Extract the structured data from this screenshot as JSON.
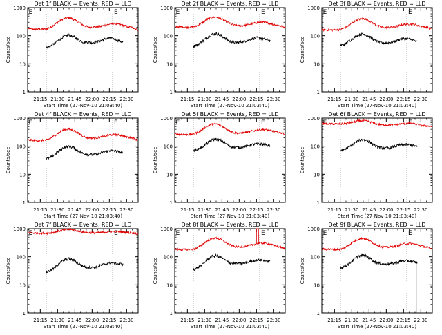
{
  "colors": {
    "events": "#000000",
    "lld": "#e00000",
    "axis": "#000000",
    "background": "#ffffff"
  },
  "shared": {
    "xlabel": "Start Time (27-Nov-10 21:03:40)",
    "ylabel": "Counts/sec",
    "x_tick_labels": [
      "21:15",
      "21:30",
      "21:45",
      "22:00",
      "22:15",
      "22:30"
    ],
    "x_tick_minutes": [
      15,
      30,
      45,
      60,
      75,
      90
    ],
    "x_range_minutes": [
      4,
      100
    ],
    "y_tick_labels": [
      "1",
      "10",
      "100",
      "1000"
    ],
    "y_tick_values": [
      1,
      10,
      100,
      1000
    ],
    "ylim": [
      1,
      1000
    ],
    "yscale": "log",
    "marker_lines_minutes": [
      20,
      78
    ],
    "marker_labels": [
      "E",
      "E"
    ],
    "marker_label_positions_minutes": [
      5,
      79
    ]
  },
  "chart_data": [
    {
      "type": "line",
      "title": "Det 1f BLACK = Events, RED = LLD",
      "series": [
        {
          "name": "Events",
          "color": "black",
          "start_min": 20,
          "end_min": 87,
          "x": [
            20,
            24,
            28,
            32,
            36,
            40,
            44,
            48,
            52,
            56,
            60,
            64,
            68,
            72,
            76,
            80,
            84,
            87
          ],
          "values": [
            38,
            42,
            55,
            75,
            95,
            105,
            92,
            72,
            60,
            58,
            57,
            60,
            68,
            78,
            82,
            75,
            65,
            58
          ]
        },
        {
          "name": "LLD",
          "color": "red",
          "start_min": 4,
          "end_min": 100,
          "x": [
            4,
            10,
            16,
            20,
            24,
            28,
            32,
            36,
            40,
            44,
            48,
            52,
            56,
            60,
            64,
            68,
            72,
            76,
            80,
            84,
            88,
            92,
            96,
            100
          ],
          "values": [
            175,
            170,
            170,
            175,
            200,
            260,
            340,
            410,
            440,
            380,
            300,
            240,
            205,
            200,
            205,
            215,
            240,
            260,
            265,
            250,
            225,
            205,
            190,
            160
          ]
        }
      ]
    },
    {
      "type": "line",
      "title": "Det 2f BLACK = Events, RED = LLD",
      "series": [
        {
          "name": "Events",
          "color": "black",
          "start_min": 20,
          "end_min": 87,
          "x": [
            20,
            24,
            28,
            32,
            36,
            40,
            44,
            48,
            52,
            56,
            60,
            64,
            68,
            72,
            76,
            80,
            84,
            87
          ],
          "values": [
            42,
            48,
            62,
            85,
            110,
            118,
            102,
            78,
            62,
            58,
            58,
            62,
            70,
            80,
            85,
            80,
            72,
            66
          ]
        },
        {
          "name": "LLD",
          "color": "red",
          "start_min": 4,
          "end_min": 100,
          "x": [
            4,
            10,
            16,
            20,
            24,
            28,
            32,
            36,
            40,
            44,
            48,
            52,
            56,
            60,
            64,
            68,
            72,
            76,
            80,
            84,
            88,
            92,
            96,
            100
          ],
          "values": [
            210,
            205,
            200,
            205,
            230,
            290,
            380,
            450,
            470,
            410,
            330,
            270,
            235,
            225,
            230,
            245,
            270,
            295,
            305,
            290,
            265,
            240,
            220,
            195
          ]
        }
      ]
    },
    {
      "type": "line",
      "title": "Det 3f BLACK = Events, RED = LLD",
      "series": [
        {
          "name": "Events",
          "color": "black",
          "start_min": 20,
          "end_min": 87,
          "x": [
            20,
            24,
            28,
            32,
            36,
            40,
            44,
            48,
            52,
            56,
            60,
            64,
            68,
            72,
            76,
            80,
            84,
            87
          ],
          "values": [
            45,
            50,
            65,
            85,
            108,
            115,
            100,
            78,
            62,
            56,
            55,
            58,
            65,
            75,
            80,
            76,
            68,
            60
          ]
        },
        {
          "name": "LLD",
          "color": "red",
          "start_min": 4,
          "end_min": 100,
          "x": [
            4,
            10,
            16,
            20,
            24,
            28,
            32,
            36,
            40,
            44,
            48,
            52,
            56,
            60,
            64,
            68,
            72,
            76,
            80,
            84,
            88,
            92,
            96,
            100
          ],
          "values": [
            160,
            160,
            160,
            165,
            190,
            240,
            310,
            380,
            410,
            360,
            290,
            230,
            200,
            195,
            200,
            210,
            235,
            255,
            260,
            250,
            230,
            210,
            195,
            170
          ]
        }
      ]
    },
    {
      "type": "line",
      "title": "Det 4f BLACK = Events, RED = LLD",
      "series": [
        {
          "name": "Events",
          "color": "black",
          "start_min": 20,
          "end_min": 87,
          "x": [
            20,
            24,
            28,
            32,
            36,
            40,
            44,
            48,
            52,
            56,
            60,
            64,
            68,
            72,
            76,
            80,
            84,
            87
          ],
          "values": [
            35,
            40,
            52,
            72,
            92,
            100,
            88,
            68,
            55,
            52,
            50,
            52,
            58,
            65,
            70,
            68,
            62,
            58
          ]
        },
        {
          "name": "LLD",
          "color": "red",
          "start_min": 4,
          "end_min": 100,
          "x": [
            4,
            10,
            16,
            20,
            24,
            28,
            32,
            36,
            40,
            44,
            48,
            52,
            56,
            60,
            64,
            68,
            72,
            76,
            80,
            84,
            88,
            92,
            96,
            100
          ],
          "values": [
            165,
            160,
            160,
            165,
            190,
            245,
            320,
            390,
            410,
            360,
            290,
            230,
            200,
            195,
            200,
            210,
            235,
            255,
            260,
            250,
            225,
            205,
            190,
            165
          ]
        }
      ]
    },
    {
      "type": "line",
      "title": "Det 5f BLACK = Events, RED = LLD",
      "series": [
        {
          "name": "Events",
          "color": "black",
          "start_min": 20,
          "end_min": 87,
          "x": [
            20,
            24,
            28,
            32,
            36,
            40,
            44,
            48,
            52,
            56,
            60,
            64,
            68,
            72,
            76,
            80,
            84,
            87
          ],
          "values": [
            70,
            78,
            95,
            125,
            165,
            180,
            160,
            125,
            100,
            92,
            90,
            95,
            105,
            115,
            120,
            118,
            110,
            105
          ]
        },
        {
          "name": "LLD",
          "color": "red",
          "start_min": 4,
          "end_min": 100,
          "x": [
            4,
            10,
            16,
            20,
            24,
            28,
            32,
            36,
            40,
            44,
            48,
            52,
            56,
            60,
            64,
            68,
            72,
            76,
            80,
            84,
            88,
            92,
            96,
            100
          ],
          "values": [
            270,
            265,
            260,
            270,
            310,
            390,
            500,
            600,
            620,
            540,
            430,
            350,
            300,
            290,
            300,
            320,
            350,
            380,
            395,
            380,
            350,
            320,
            300,
            270
          ]
        }
      ]
    },
    {
      "type": "line",
      "title": "Det 6f BLACK = Events, RED = LLD",
      "series": [
        {
          "name": "Events",
          "color": "black",
          "start_min": 20,
          "end_min": 87,
          "x": [
            20,
            24,
            28,
            32,
            36,
            40,
            44,
            48,
            52,
            56,
            60,
            64,
            68,
            72,
            76,
            80,
            84,
            87
          ],
          "values": [
            70,
            78,
            95,
            125,
            160,
            175,
            155,
            120,
            95,
            88,
            85,
            90,
            100,
            110,
            115,
            112,
            105,
            95
          ]
        },
        {
          "name": "LLD",
          "color": "red",
          "start_min": 4,
          "end_min": 100,
          "x": [
            4,
            10,
            16,
            20,
            24,
            28,
            32,
            36,
            40,
            44,
            48,
            52,
            56,
            60,
            64,
            68,
            72,
            76,
            80,
            84,
            88,
            92,
            96,
            100
          ],
          "values": [
            640,
            630,
            620,
            615,
            630,
            680,
            740,
            800,
            820,
            770,
            690,
            620,
            580,
            570,
            575,
            585,
            610,
            640,
            650,
            620,
            580,
            540,
            520,
            510
          ]
        }
      ]
    },
    {
      "type": "line",
      "title": "Det 7f BLACK = Events, RED = LLD",
      "series": [
        {
          "name": "Events",
          "color": "black",
          "start_min": 20,
          "end_min": 87,
          "x": [
            20,
            24,
            28,
            32,
            36,
            40,
            44,
            48,
            52,
            56,
            60,
            64,
            68,
            72,
            76,
            80,
            84,
            87
          ],
          "values": [
            28,
            32,
            42,
            60,
            78,
            85,
            75,
            58,
            46,
            42,
            42,
            44,
            50,
            56,
            60,
            58,
            55,
            55
          ]
        },
        {
          "name": "LLD",
          "color": "red",
          "start_min": 4,
          "end_min": 100,
          "x": [
            4,
            10,
            16,
            20,
            24,
            28,
            32,
            36,
            40,
            44,
            48,
            52,
            56,
            60,
            64,
            68,
            72,
            76,
            80,
            84,
            88,
            92,
            96,
            100
          ],
          "values": [
            720,
            700,
            690,
            690,
            710,
            760,
            840,
            910,
            940,
            900,
            830,
            760,
            720,
            710,
            715,
            730,
            760,
            790,
            800,
            780,
            750,
            720,
            690,
            650
          ]
        }
      ]
    },
    {
      "type": "line",
      "title": "Det 8f BLACK = Events, RED = LLD",
      "series": [
        {
          "name": "Events",
          "color": "black",
          "start_min": 20,
          "end_min": 87,
          "x": [
            20,
            24,
            28,
            32,
            36,
            40,
            44,
            48,
            52,
            56,
            60,
            64,
            68,
            72,
            76,
            80,
            84,
            87
          ],
          "values": [
            35,
            40,
            52,
            75,
            100,
            110,
            98,
            75,
            60,
            58,
            56,
            58,
            65,
            72,
            78,
            75,
            70,
            68
          ]
        },
        {
          "name": "LLD",
          "color": "red",
          "start_min": 4,
          "end_min": 100,
          "x": [
            4,
            10,
            16,
            20,
            24,
            28,
            32,
            36,
            40,
            44,
            48,
            52,
            56,
            60,
            64,
            68,
            72,
            76,
            80,
            84,
            88,
            92,
            96,
            100
          ],
          "values": [
            185,
            180,
            180,
            185,
            210,
            270,
            360,
            440,
            470,
            410,
            330,
            265,
            230,
            225,
            230,
            245,
            270,
            300,
            310,
            295,
            265,
            240,
            220,
            190
          ]
        }
      ],
      "annotations": [
        {
          "type": "spike",
          "series": "LLD",
          "x_min": 75,
          "peak": 1000
        }
      ]
    },
    {
      "type": "line",
      "title": "Det 9f BLACK = Events, RED = LLD",
      "series": [
        {
          "name": "Events",
          "color": "black",
          "start_min": 20,
          "end_min": 87,
          "x": [
            20,
            24,
            28,
            32,
            36,
            40,
            44,
            48,
            52,
            56,
            60,
            64,
            68,
            72,
            76,
            80,
            84,
            87
          ],
          "values": [
            40,
            45,
            58,
            80,
            105,
            112,
            98,
            76,
            60,
            56,
            55,
            57,
            62,
            68,
            72,
            70,
            65,
            62
          ]
        },
        {
          "name": "LLD",
          "color": "red",
          "start_min": 4,
          "end_min": 100,
          "x": [
            4,
            10,
            16,
            20,
            24,
            28,
            32,
            36,
            40,
            44,
            48,
            52,
            56,
            60,
            64,
            68,
            72,
            76,
            80,
            84,
            88,
            92,
            96,
            100
          ],
          "values": [
            190,
            185,
            180,
            185,
            210,
            270,
            350,
            430,
            460,
            400,
            320,
            260,
            225,
            220,
            225,
            240,
            265,
            290,
            300,
            285,
            260,
            235,
            215,
            185
          ]
        }
      ],
      "annotations": [
        {
          "type": "dropout",
          "series": "Events",
          "x_min": 86,
          "to": 1
        }
      ]
    }
  ]
}
